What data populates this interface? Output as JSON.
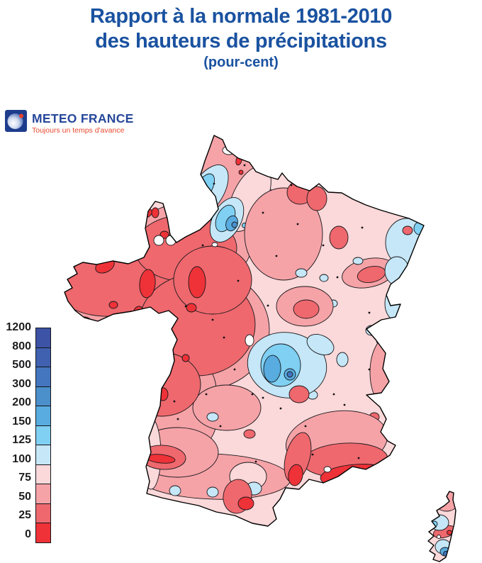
{
  "title": {
    "line1": "Rapport à la normale 1981-2010",
    "line2": "des hauteurs de précipitations",
    "subtitle": "(pour-cent)"
  },
  "logo": {
    "name": "METEO FRANCE",
    "tagline": "Toujours un temps d'avance"
  },
  "legend": {
    "tick_labels": [
      "1200",
      "800",
      "500",
      "300",
      "200",
      "150",
      "125",
      "100",
      "75",
      "50",
      "25",
      "0"
    ],
    "band_colors_top_to_bottom": [
      "#3d53a5",
      "#4061b0",
      "#4376be",
      "#4b8fcb",
      "#58ace0",
      "#7fd0f2",
      "#c5e7f7",
      "#fbd8d9",
      "#f5a3a7",
      "#ee686d",
      "#ee3237"
    ]
  },
  "colors": {
    "title": "#1a52a0",
    "logo_text": "#27489a",
    "tagline": "#e8492f",
    "legend_text": "#1d1d1f"
  },
  "chart_data": {
    "type": "contour-map",
    "region": "France (metropolitan, with Corsica)",
    "quantity": "Precipitation amount as percent of the 1981-2010 normal",
    "unit": "percent",
    "scale_breakpoints": [
      0,
      25,
      50,
      75,
      100,
      125,
      150,
      200,
      300,
      500,
      800,
      1200
    ],
    "scale_colors_low_to_high": [
      "#ee3237",
      "#ee686d",
      "#f5a3a7",
      "#fbd8d9",
      "#c5e7f7",
      "#7fd0f2",
      "#58ace0",
      "#4b8fcb",
      "#4376be",
      "#4061b0",
      "#3d53a5"
    ],
    "legend_position": "left",
    "notable_features": [
      "Brittany, Normandy and Pays de la Loire mostly 25-50% with local 0-25% spots",
      "Band of 100-200% (locally 200-300%) from Picardy down to the Paris region",
      "Light-blue 100-150% patches over Alsace-Vosges and the Jura",
      "Blue bullseye 125-300% over the Massif Central",
      "Most of central, eastern and southwestern France 50-100%",
      "Provence / Var coast 0-25% (bright red)",
      "Gers and eastern Pyrenees red spots 0-50%",
      "Corsica: north 50-100% with 100-150% patch, far south 150-300%"
    ]
  }
}
